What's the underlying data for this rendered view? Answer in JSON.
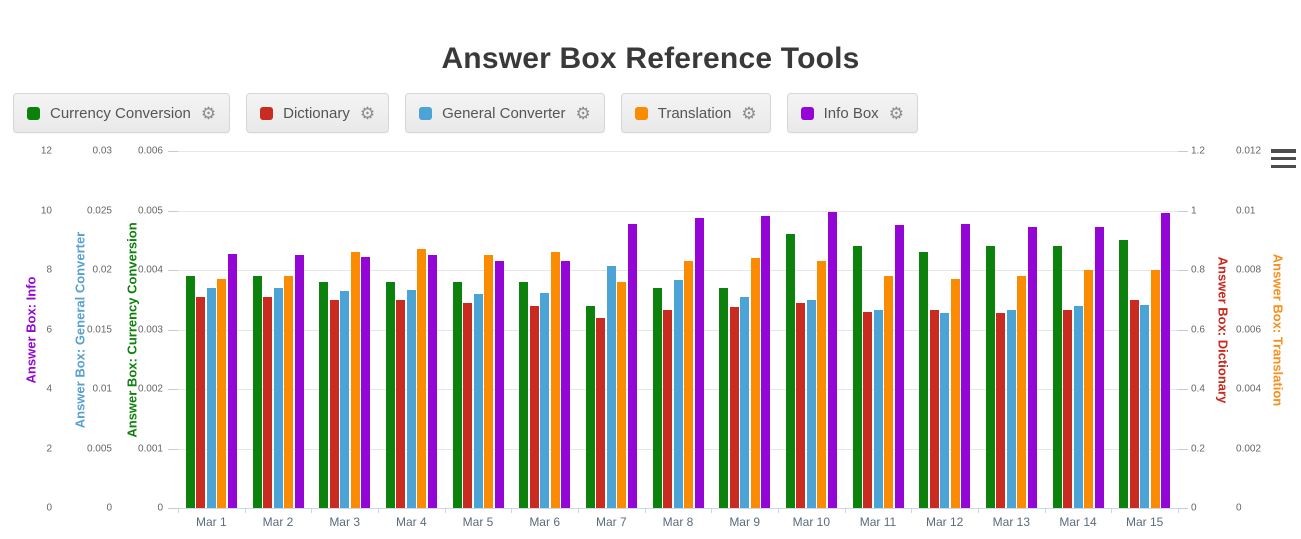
{
  "page": {
    "title": "Answer Box Reference Tools"
  },
  "icons": {
    "gear": "⚙",
    "menu": "≡"
  },
  "legend": {
    "items": [
      {
        "label": "Currency Conversion",
        "color": "#0c820c"
      },
      {
        "label": "Dictionary",
        "color": "#ca2b21"
      },
      {
        "label": "General Converter",
        "color": "#4ba3d6"
      },
      {
        "label": "Translation",
        "color": "#fb8b00"
      },
      {
        "label": "Info Box",
        "color": "#9406d6"
      }
    ]
  },
  "chart_data": {
    "type": "bar",
    "title": "Answer Box Reference Tools",
    "grid": true,
    "legend_position": "top-left",
    "categories": [
      "Mar 1",
      "Mar 2",
      "Mar 3",
      "Mar 4",
      "Mar 5",
      "Mar 6",
      "Mar 7",
      "Mar 8",
      "Mar 9",
      "Mar 10",
      "Mar 11",
      "Mar 12",
      "Mar 13",
      "Mar 14",
      "Mar 15"
    ],
    "axes": [
      {
        "title": "Answer Box: Info",
        "color": "#9406d6",
        "side": "left",
        "max": 12,
        "ticks": [
          "12",
          "10",
          "8",
          "6",
          "4",
          "2",
          "0"
        ]
      },
      {
        "title": "Answer Box: General Converter",
        "color": "#58a0cf",
        "side": "left",
        "max": 0.03,
        "ticks": [
          "0.03",
          "0.025",
          "0.02",
          "0.015",
          "0.01",
          "0.005",
          "0"
        ]
      },
      {
        "title": "Answer Box: Currency Conversion",
        "color": "#0c820c",
        "side": "left",
        "max": 0.006,
        "ticks": [
          "0.006",
          "0.005",
          "0.004",
          "0.003",
          "0.002",
          "0.001",
          "0"
        ]
      },
      {
        "title": "Answer Box: Dictionary",
        "color": "#c9281e",
        "side": "right",
        "max": 1.2,
        "ticks": [
          "1.2",
          "1",
          "0.8",
          "0.6",
          "0.4",
          "0.2",
          "0"
        ]
      },
      {
        "title": "Answer Box: Translation",
        "color": "#f78f1e",
        "side": "right",
        "max": 0.012,
        "ticks": [
          "0.012",
          "0.01",
          "0.008",
          "0.006",
          "0.004",
          "0.002",
          "0"
        ]
      }
    ],
    "series": [
      {
        "name": "Currency Conversion",
        "color": "#0c820c",
        "axis_max": 0.006,
        "values": [
          0.0039,
          0.0039,
          0.0038,
          0.0038,
          0.0038,
          0.0038,
          0.0034,
          0.0037,
          0.0037,
          0.0046,
          0.0044,
          0.0043,
          0.0044,
          0.0044,
          0.0045
        ]
      },
      {
        "name": "Dictionary",
        "color": "#ca2b21",
        "axis_max": 1.2,
        "values": [
          0.71,
          0.71,
          0.7,
          0.7,
          0.69,
          0.68,
          0.64,
          0.665,
          0.675,
          0.69,
          0.66,
          0.665,
          0.655,
          0.665,
          0.7
        ]
      },
      {
        "name": "General Converter",
        "color": "#4ba3d6",
        "axis_max": 0.03,
        "values": [
          0.0185,
          0.0185,
          0.0182,
          0.0183,
          0.018,
          0.0181,
          0.0203,
          0.0192,
          0.0177,
          0.0175,
          0.0166,
          0.0164,
          0.0166,
          0.017,
          0.0171
        ]
      },
      {
        "name": "Translation",
        "color": "#fb8b00",
        "axis_max": 0.012,
        "values": [
          0.0077,
          0.0078,
          0.0086,
          0.0087,
          0.0085,
          0.0086,
          0.0076,
          0.0083,
          0.0084,
          0.0083,
          0.0078,
          0.0077,
          0.0078,
          0.008,
          0.008
        ]
      },
      {
        "name": "Info Box",
        "color": "#9406d6",
        "axis_max": 12,
        "values": [
          8.55,
          8.5,
          8.45,
          8.5,
          8.3,
          8.3,
          9.55,
          9.75,
          9.8,
          9.95,
          9.5,
          9.55,
          9.45,
          9.45,
          9.9
        ]
      }
    ]
  }
}
